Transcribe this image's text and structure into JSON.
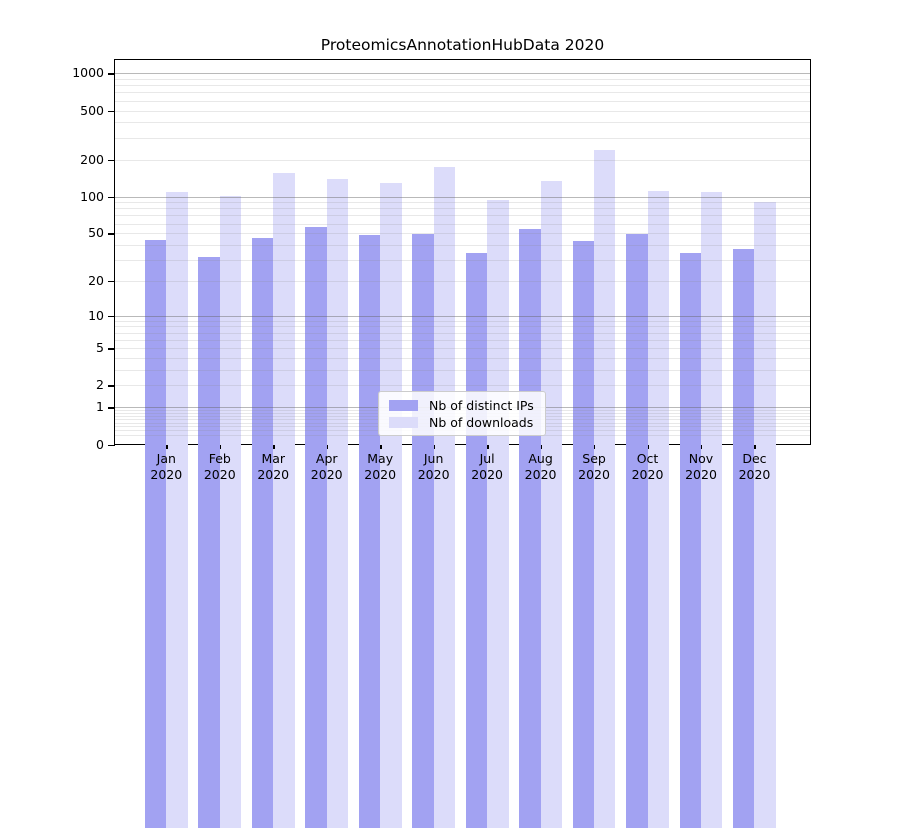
{
  "chart_data": {
    "type": "bar",
    "title": "ProteomicsAnnotationHubData 2020",
    "categories": [
      "Jan 2020",
      "Feb 2020",
      "Mar 2020",
      "Apr 2020",
      "May 2020",
      "Jun 2020",
      "Jul 2020",
      "Aug 2020",
      "Sep 2020",
      "Oct 2020",
      "Nov 2020",
      "Dec 2020"
    ],
    "series": [
      {
        "name": "Nb of distinct IPs",
        "color": "#a2a2f2",
        "values": [
          44,
          32,
          46,
          56,
          48,
          49,
          34,
          54,
          43,
          49,
          34,
          37
        ]
      },
      {
        "name": "Nb of downloads",
        "color": "#dcdcfa",
        "values": [
          108,
          101,
          156,
          139,
          130,
          175,
          93,
          135,
          241,
          112,
          108,
          91
        ]
      }
    ],
    "xlabel": "",
    "ylabel": "",
    "yscale": "symlog: position proportional to log10(1 + value)",
    "y_ticks": [
      0,
      1,
      2,
      5,
      10,
      20,
      50,
      100,
      200,
      500,
      1000
    ],
    "y_major_gridlines": [
      1,
      10,
      100,
      1000
    ],
    "ylim": [
      0,
      1300
    ],
    "grid": "on",
    "legend_position": "lower center inside plot",
    "colors": {
      "grid_major": "#b9b9b9",
      "grid_minor": "#e6e6e6",
      "axis": "#000000",
      "text": "#000000",
      "background": "#ffffff"
    }
  }
}
